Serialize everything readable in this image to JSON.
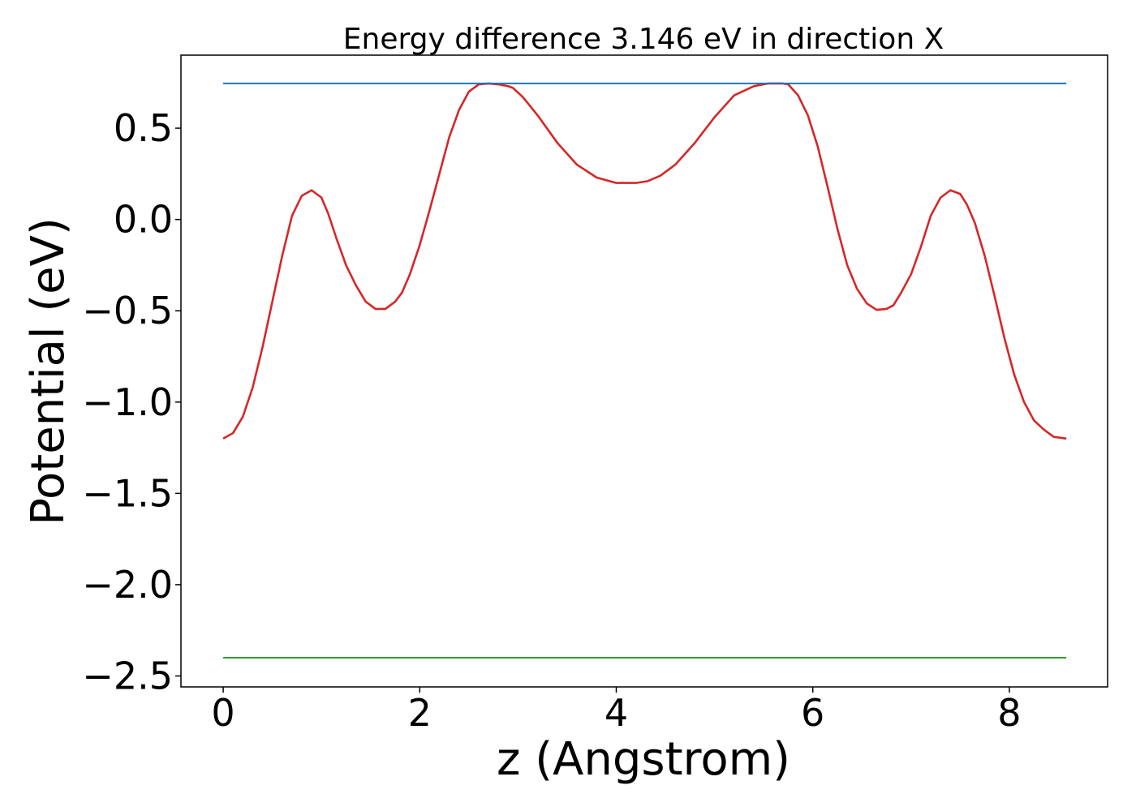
{
  "chart_data": {
    "type": "line",
    "title": "Energy difference 3.146 eV in direction X",
    "xlabel": "z (Angstrom)",
    "ylabel": "Potential (eV)",
    "xlim": [
      -0.43,
      9.0
    ],
    "ylim": [
      -2.56,
      0.9
    ],
    "xticks": [
      0,
      2,
      4,
      6,
      8
    ],
    "xtick_labels": [
      "0",
      "2",
      "4",
      "6",
      "8"
    ],
    "yticks": [
      0.5,
      0.0,
      -0.5,
      -1.0,
      -1.5,
      -2.0,
      -2.5
    ],
    "ytick_labels": [
      "0.5",
      "0.0",
      "−0.5",
      "−1.0",
      "−1.5",
      "−2.0",
      "−2.5"
    ],
    "grid": false,
    "legend": "none",
    "series": [
      {
        "color": "#d62728",
        "x": [
          0.0,
          0.1,
          0.2,
          0.3,
          0.4,
          0.5,
          0.6,
          0.7,
          0.8,
          0.9,
          1.0,
          1.07,
          1.15,
          1.25,
          1.35,
          1.45,
          1.55,
          1.65,
          1.75,
          1.82,
          1.9,
          2.0,
          2.1,
          2.2,
          2.3,
          2.4,
          2.5,
          2.6,
          2.7,
          2.8,
          2.9,
          2.95,
          3.05,
          3.2,
          3.4,
          3.6,
          3.8,
          4.0,
          4.2,
          4.32,
          4.45,
          4.6,
          4.8,
          5.0,
          5.2,
          5.4,
          5.55,
          5.69,
          5.75,
          5.85,
          5.95,
          6.05,
          6.15,
          6.25,
          6.35,
          6.45,
          6.55,
          6.65,
          6.75,
          6.82,
          6.9,
          7.0,
          7.1,
          7.2,
          7.3,
          7.4,
          7.5,
          7.57,
          7.65,
          7.75,
          7.85,
          7.95,
          8.05,
          8.15,
          8.25,
          8.35,
          8.45,
          8.58
        ],
        "y": [
          -1.2,
          -1.17,
          -1.08,
          -0.92,
          -0.7,
          -0.45,
          -0.2,
          0.02,
          0.13,
          0.16,
          0.12,
          0.03,
          -0.1,
          -0.25,
          -0.36,
          -0.45,
          -0.49,
          -0.49,
          -0.45,
          -0.4,
          -0.3,
          -0.14,
          0.05,
          0.25,
          0.45,
          0.6,
          0.7,
          0.74,
          0.745,
          0.74,
          0.73,
          0.72,
          0.67,
          0.57,
          0.42,
          0.3,
          0.23,
          0.2,
          0.2,
          0.21,
          0.24,
          0.3,
          0.42,
          0.56,
          0.68,
          0.73,
          0.745,
          0.745,
          0.74,
          0.68,
          0.57,
          0.4,
          0.18,
          -0.05,
          -0.25,
          -0.38,
          -0.46,
          -0.495,
          -0.49,
          -0.47,
          -0.4,
          -0.3,
          -0.15,
          0.02,
          0.12,
          0.16,
          0.14,
          0.08,
          -0.02,
          -0.2,
          -0.42,
          -0.65,
          -0.85,
          -1.0,
          -1.1,
          -1.15,
          -1.19,
          -1.2
        ]
      },
      {
        "color": "#1f77b4",
        "x": [
          0.0,
          8.58
        ],
        "y": [
          0.745,
          0.745
        ]
      },
      {
        "color": "#2ca02c",
        "x": [
          0.0,
          8.58
        ],
        "y": [
          -2.4,
          -2.4
        ]
      }
    ]
  }
}
